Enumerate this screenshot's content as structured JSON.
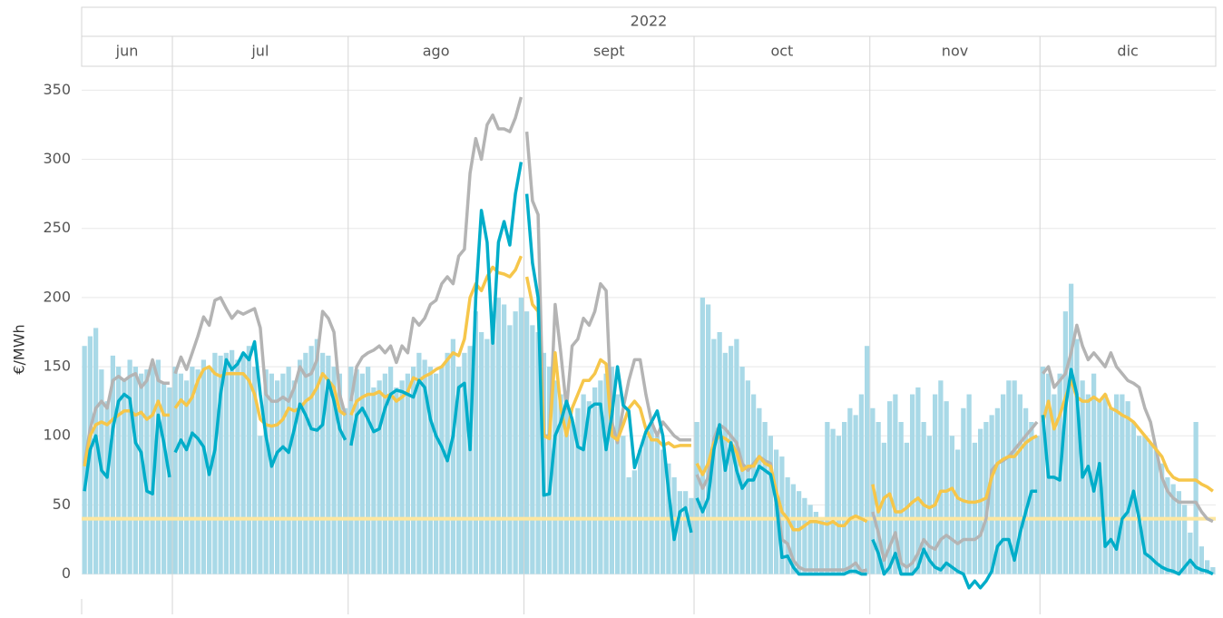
{
  "chart_data": {
    "type": "bar_line",
    "header": "2022",
    "y_label": "€/MWh",
    "months": [
      "jun",
      "jul",
      "ago",
      "sept",
      "oct",
      "nov",
      "dic"
    ],
    "ylim": [
      -18,
      366
    ],
    "yticks": [
      0,
      50,
      100,
      150,
      200,
      250,
      300,
      350
    ],
    "grid": true,
    "reference_line": {
      "value": 40,
      "color": "#fde7a0"
    },
    "series": [
      {
        "type": "bar",
        "color": "#a9d9e7",
        "values": [
          [
            165,
            172,
            178,
            148,
            125,
            158,
            150,
            140,
            155,
            150,
            145,
            148,
            150,
            155,
            138,
            135
          ],
          [
            150,
            145,
            140,
            150,
            148,
            155,
            150,
            160,
            158,
            160,
            162,
            155,
            160,
            165,
            150,
            100,
            148,
            145,
            140,
            145,
            150,
            140,
            155,
            160,
            165,
            170,
            160,
            158,
            150,
            145,
            120
          ],
          [
            150,
            148,
            145,
            150,
            135,
            140,
            145,
            150,
            135,
            140,
            145,
            150,
            160,
            155,
            150,
            145,
            150,
            160,
            170,
            150,
            160,
            165,
            190,
            175,
            170,
            190,
            200,
            195,
            180,
            190,
            200
          ],
          [
            190,
            180,
            175,
            160,
            150,
            140,
            130,
            120,
            110,
            120,
            130,
            125,
            135,
            140,
            145,
            150,
            130,
            100,
            70,
            75,
            90,
            100,
            110,
            100,
            90,
            80,
            70,
            60,
            60,
            55
          ],
          [
            110,
            200,
            195,
            170,
            175,
            160,
            165,
            170,
            150,
            140,
            130,
            120,
            110,
            100,
            90,
            85,
            70,
            65,
            60,
            55,
            50,
            45,
            40,
            110,
            105,
            100,
            110,
            120,
            115,
            130,
            165
          ],
          [
            120,
            110,
            95,
            125,
            130,
            110,
            95,
            130,
            135,
            110,
            100,
            130,
            140,
            125,
            100,
            90,
            120,
            130,
            95,
            105,
            110,
            115,
            120,
            130,
            140,
            140,
            130,
            120,
            110,
            100
          ],
          [
            150,
            145,
            130,
            145,
            190,
            210,
            170,
            140,
            130,
            145,
            125,
            130,
            120,
            130,
            130,
            125,
            110,
            100,
            100,
            95,
            90,
            80,
            70,
            65,
            60,
            50,
            30,
            110,
            20,
            10,
            5
          ]
        ]
      },
      {
        "type": "line",
        "color": "#b4b4b4",
        "values": [
          [
            80,
            105,
            120,
            125,
            120,
            140,
            143,
            140,
            143,
            145,
            135,
            140,
            155,
            140,
            138,
            138
          ],
          [
            145,
            157,
            148,
            160,
            172,
            186,
            180,
            198,
            200,
            192,
            185,
            190,
            188,
            190,
            192,
            178,
            130,
            125,
            125,
            128,
            125,
            135,
            150,
            143,
            145,
            155,
            190,
            185,
            175,
            130,
            115
          ],
          [
            125,
            150,
            157,
            160,
            162,
            165,
            160,
            165,
            153,
            165,
            160,
            185,
            180,
            185,
            195,
            198,
            210,
            215,
            210,
            230,
            235,
            290,
            315,
            300,
            325,
            332,
            322,
            322,
            320,
            330,
            345
          ],
          [
            320,
            270,
            260,
            100,
            100,
            195,
            160,
            120,
            165,
            170,
            185,
            180,
            190,
            210,
            205,
            110,
            95,
            120,
            140,
            155,
            155,
            130,
            110,
            100,
            110,
            105,
            100,
            97,
            97,
            97
          ],
          [
            72,
            62,
            70,
            98,
            108,
            105,
            100,
            95,
            80,
            75,
            80,
            85,
            82,
            80,
            55,
            25,
            22,
            10,
            5,
            3,
            3,
            3,
            3,
            3,
            3,
            3,
            3,
            5,
            8,
            2,
            3
          ],
          [
            45,
            30,
            10,
            20,
            30,
            8,
            5,
            8,
            15,
            25,
            20,
            18,
            25,
            28,
            25,
            22,
            25,
            25,
            25,
            28,
            40,
            75,
            80,
            82,
            85,
            90,
            95,
            100,
            105,
            110
          ],
          [
            145,
            150,
            135,
            140,
            145,
            160,
            180,
            165,
            155,
            160,
            155,
            150,
            160,
            150,
            145,
            140,
            138,
            135,
            120,
            110,
            90,
            70,
            60,
            55,
            52,
            52,
            52,
            52,
            45,
            40,
            38
          ]
        ]
      },
      {
        "type": "line",
        "color": "#f6c64a",
        "values": [
          [
            78,
            100,
            108,
            110,
            108,
            112,
            115,
            118,
            118,
            115,
            117,
            112,
            115,
            125,
            115,
            115
          ],
          [
            120,
            126,
            122,
            128,
            140,
            148,
            150,
            145,
            143,
            145,
            145,
            145,
            145,
            140,
            130,
            112,
            108,
            107,
            108,
            112,
            120,
            118,
            120,
            125,
            128,
            135,
            145,
            140,
            135,
            118,
            115
          ],
          [
            115,
            125,
            128,
            130,
            130,
            132,
            128,
            130,
            125,
            128,
            132,
            142,
            140,
            143,
            145,
            148,
            150,
            155,
            160,
            158,
            170,
            200,
            210,
            205,
            215,
            222,
            218,
            217,
            215,
            220,
            230
          ],
          [
            215,
            195,
            190,
            100,
            98,
            160,
            120,
            100,
            120,
            130,
            140,
            140,
            145,
            155,
            152,
            100,
            97,
            108,
            120,
            125,
            120,
            105,
            97,
            97,
            93,
            95,
            92,
            93,
            93,
            93
          ],
          [
            80,
            72,
            80,
            95,
            100,
            98,
            95,
            88,
            75,
            78,
            78,
            85,
            80,
            78,
            60,
            45,
            40,
            32,
            32,
            35,
            38,
            38,
            37,
            36,
            38,
            35,
            35,
            40,
            42,
            40,
            38
          ],
          [
            65,
            45,
            55,
            58,
            45,
            45,
            48,
            52,
            55,
            50,
            48,
            50,
            60,
            60,
            62,
            55,
            53,
            52,
            52,
            53,
            55,
            70,
            80,
            83,
            85,
            85,
            90,
            95,
            98,
            100
          ],
          [
            110,
            125,
            105,
            115,
            128,
            140,
            128,
            125,
            125,
            128,
            125,
            130,
            120,
            118,
            115,
            113,
            110,
            105,
            100,
            95,
            90,
            85,
            75,
            70,
            68,
            68,
            68,
            68,
            65,
            63,
            60
          ]
        ]
      },
      {
        "type": "line",
        "color": "#00adc9",
        "values": [
          [
            60,
            90,
            100,
            75,
            70,
            105,
            125,
            130,
            127,
            95,
            88,
            60,
            58,
            115,
            95,
            70
          ],
          [
            88,
            97,
            90,
            102,
            98,
            92,
            72,
            90,
            130,
            155,
            148,
            152,
            160,
            155,
            168,
            130,
            100,
            78,
            88,
            92,
            88,
            105,
            123,
            115,
            105,
            104,
            108,
            140,
            125,
            105,
            97
          ],
          [
            93,
            115,
            120,
            112,
            103,
            105,
            120,
            130,
            133,
            132,
            130,
            128,
            140,
            135,
            112,
            100,
            92,
            82,
            100,
            135,
            138,
            90,
            200,
            263,
            240,
            167,
            240,
            255,
            238,
            275,
            298
          ],
          [
            275,
            225,
            200,
            57,
            58,
            100,
            110,
            125,
            112,
            92,
            90,
            120,
            123,
            123,
            90,
            115,
            150,
            122,
            118,
            77,
            90,
            103,
            110,
            118,
            100,
            60,
            25,
            45,
            48,
            30
          ],
          [
            55,
            45,
            55,
            90,
            108,
            75,
            95,
            75,
            62,
            68,
            68,
            78,
            75,
            72,
            52,
            12,
            13,
            5,
            0,
            0,
            0,
            0,
            0,
            0,
            0,
            0,
            0,
            2,
            2,
            0,
            0
          ],
          [
            25,
            15,
            0,
            5,
            15,
            0,
            0,
            0,
            5,
            18,
            10,
            5,
            3,
            8,
            5,
            2,
            0,
            -10,
            -5,
            -10,
            -5,
            2,
            20,
            25,
            25,
            10,
            30,
            45,
            60,
            60
          ],
          [
            115,
            70,
            70,
            68,
            120,
            148,
            130,
            70,
            78,
            60,
            80,
            20,
            25,
            18,
            40,
            45,
            60,
            40,
            15,
            12,
            8,
            5,
            3,
            2,
            0,
            5,
            10,
            5,
            3,
            2,
            0
          ]
        ]
      }
    ]
  }
}
